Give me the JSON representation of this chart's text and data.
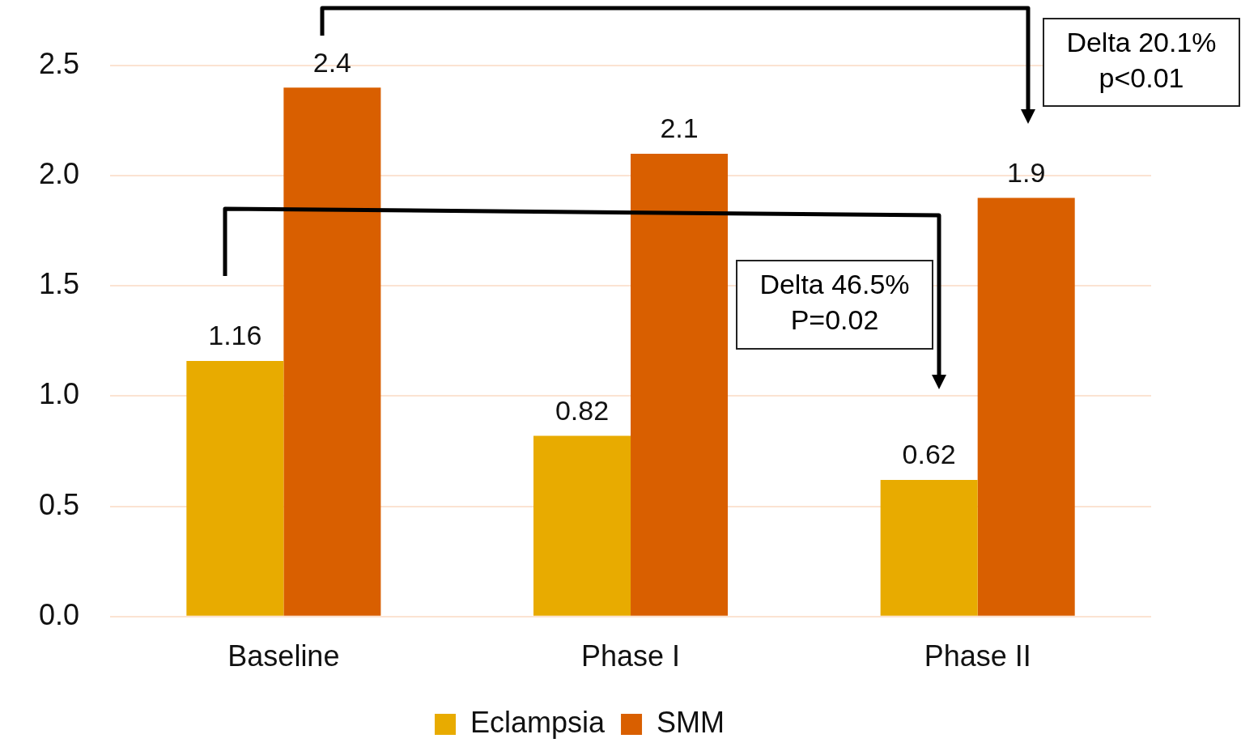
{
  "chart_data": {
    "type": "bar",
    "categories": [
      "Baseline",
      "Phase I",
      "Phase II"
    ],
    "series": [
      {
        "name": "Eclampsia",
        "color": "#e8ab00",
        "values": [
          1.16,
          0.82,
          0.62
        ]
      },
      {
        "name": "SMM",
        "color": "#d95f00",
        "values": [
          2.4,
          2.1,
          1.9
        ]
      }
    ],
    "ylim": [
      0,
      2.5
    ],
    "yticks": [
      {
        "value": 0,
        "label": "0.0"
      },
      {
        "value": 0.5,
        "label": "0.5"
      },
      {
        "value": 1,
        "label": "1.0"
      },
      {
        "value": 1.5,
        "label": "1.5"
      },
      {
        "value": 2,
        "label": "2.0"
      },
      {
        "value": 2.5,
        "label": "2.5"
      }
    ],
    "grid": "y",
    "legend": "bottom",
    "data_labels": true,
    "annotations": [
      "Delta 20.1%\np<0.01",
      "Delta 46.5%\nP=0.02"
    ]
  }
}
